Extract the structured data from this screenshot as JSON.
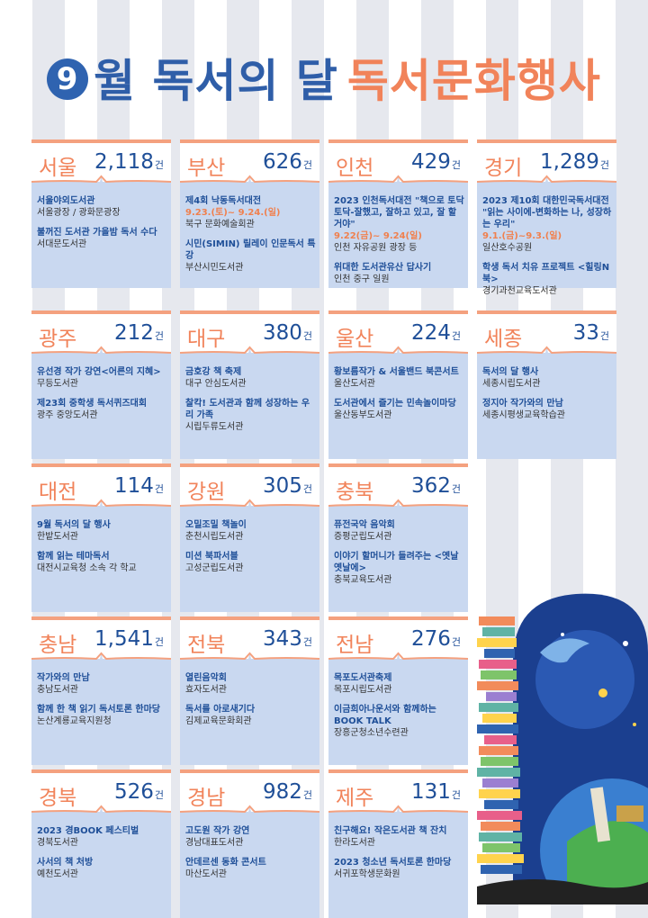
{
  "title": {
    "number": "9",
    "part1": "월 독서의 달",
    "part2": "독서문화행사"
  },
  "count_unit": "건",
  "regions": [
    {
      "name": "서울",
      "count": "2,118",
      "events": [
        {
          "title": "서울야외도서관",
          "place": "서울광장 / 광화문광장"
        },
        {
          "title": "불꺼진 도서관 가을밤 독서 수다",
          "place": "서대문도서관"
        }
      ]
    },
    {
      "name": "부산",
      "count": "626",
      "events": [
        {
          "title": "제4회 낙동독서대전",
          "date": "9.23.(토)~ 9.24.(일)",
          "place": "북구 문화예술회관"
        },
        {
          "title": "시민(SIMIN) 릴레이 인문독서 특강",
          "place": "부산시민도서관"
        }
      ]
    },
    {
      "name": "인천",
      "count": "429",
      "events": [
        {
          "title": "2023 인천독서대전 \"책으로 토닥토닥-잘했고, 잘하고 있고, 잘 할거야\"",
          "date": "9.22(금)~ 9.24(일)",
          "place": "인천 자유공원 광장 등"
        },
        {
          "title": "위대한 도서관유산 답사기",
          "place": "인천 중구 일원"
        }
      ]
    },
    {
      "name": "경기",
      "count": "1,289",
      "events": [
        {
          "title": "2023 제10회 대한민국독서대전 \"읽는 사이에-변화하는 나, 성장하는 우리\"",
          "date": "9.1.(금)~9.3.(일)",
          "place": "일산호수공원"
        },
        {
          "title": "학생 독서 치유 프로젝트 <힐링N북>",
          "place": "경기과천교육도서관"
        }
      ]
    },
    {
      "name": "광주",
      "count": "212",
      "events": [
        {
          "title": "유선경 작가 강연<어른의 지혜>",
          "place": "무등도서관"
        },
        {
          "title": "제23회 중학생 독서퀴즈대회",
          "place": "광주 중앙도서관"
        }
      ]
    },
    {
      "name": "대구",
      "count": "380",
      "events": [
        {
          "title": "금호강 책 축제",
          "place": "대구 안심도서관"
        },
        {
          "title": "찰칵! 도서관과 함께 성장하는 우리 가족",
          "place": "시립두류도서관"
        }
      ]
    },
    {
      "name": "울산",
      "count": "224",
      "events": [
        {
          "title": "황보름작가 & 서울밴드 북콘서트",
          "place": "울산도서관"
        },
        {
          "title": "도서관에서 즐기는 민속놀이마당",
          "place": "울산동부도서관"
        }
      ]
    },
    {
      "name": "세종",
      "count": "33",
      "events": [
        {
          "title": "독서의 달 행사",
          "place": "세종시립도서관"
        },
        {
          "title": "정지아 작가와의 만남",
          "place": "세종시평생교육학습관"
        }
      ]
    },
    {
      "name": "대전",
      "count": "114",
      "events": [
        {
          "title": "9월 독서의 달 행사",
          "place": "한밭도서관"
        },
        {
          "title": "함께 읽는 테마독서",
          "place": "대전시교육청 소속 각 학교"
        }
      ]
    },
    {
      "name": "강원",
      "count": "305",
      "events": [
        {
          "title": "오밀조밀 책놀이",
          "place": "춘천시립도서관"
        },
        {
          "title": "미션 북파서블",
          "place": "고성군립도서관"
        }
      ]
    },
    {
      "name": "충북",
      "count": "362",
      "events": [
        {
          "title": "퓨전국악 음악회",
          "place": "증평군립도서관"
        },
        {
          "title": "이야기 할머니가 들려주는 <옛날옛날에>",
          "place": "충북교육도서관"
        }
      ]
    },
    {
      "name": "충남",
      "count": "1,541",
      "events": [
        {
          "title": "작가와의 만남",
          "place": "충남도서관"
        },
        {
          "title": "함께 한 책 읽기 독서토론 한마당",
          "place": "논산계룡교육지원청"
        }
      ]
    },
    {
      "name": "전북",
      "count": "343",
      "events": [
        {
          "title": "열린음악회",
          "place": "효자도서관"
        },
        {
          "title": "독서를 아로새기다",
          "place": "김제교육문화회관"
        }
      ]
    },
    {
      "name": "전남",
      "count": "276",
      "events": [
        {
          "title": "목포도서관축제",
          "place": "목포시립도서관"
        },
        {
          "title": "이금희아나운서와 함께하는 BOOK TALK",
          "place": "장흥군청소년수련관"
        }
      ]
    },
    {
      "name": "경북",
      "count": "526",
      "events": [
        {
          "title": "2023 경BOOK 페스티벌",
          "place": "경북도서관"
        },
        {
          "title": "사서의 책 처방",
          "place": "예천도서관"
        }
      ]
    },
    {
      "name": "경남",
      "count": "982",
      "events": [
        {
          "title": "고도원 작가 강연",
          "place": "경남대표도서관"
        },
        {
          "title": "안데르센 동화 콘서트",
          "place": "마산도서관"
        }
      ]
    },
    {
      "name": "제주",
      "count": "131",
      "events": [
        {
          "title": "친구해요! 작은도서관 책 잔치",
          "place": "한라도서관"
        },
        {
          "title": "2023 청소년 독서토론 한마당",
          "place": "서귀포학생문화원"
        }
      ]
    }
  ]
}
